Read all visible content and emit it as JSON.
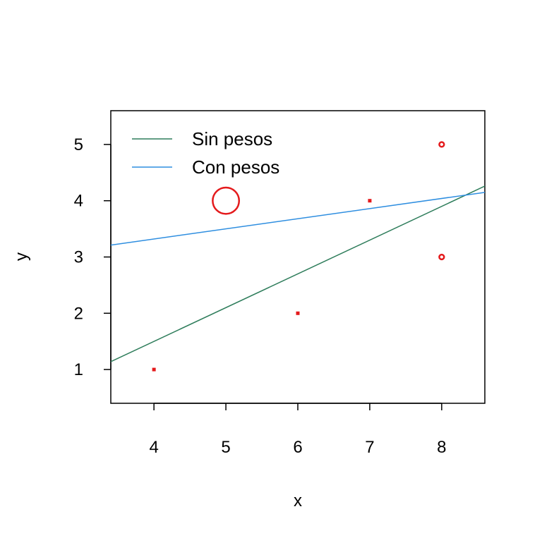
{
  "chart_data": {
    "type": "scatter",
    "title": "",
    "xlabel": "x",
    "ylabel": "y",
    "xlim": [
      3.4,
      8.6
    ],
    "ylim": [
      0.4,
      5.6
    ],
    "x_ticks": [
      4,
      5,
      6,
      7,
      8
    ],
    "y_ticks": [
      1,
      2,
      3,
      4,
      5
    ],
    "grid": false,
    "legend_position": "top-left",
    "points": [
      {
        "x": 4,
        "y": 1,
        "weight": 1
      },
      {
        "x": 5,
        "y": 4,
        "weight": 11
      },
      {
        "x": 6,
        "y": 2,
        "weight": 1
      },
      {
        "x": 7,
        "y": 4,
        "weight": 1
      },
      {
        "x": 8,
        "y": 3,
        "weight": 2
      },
      {
        "x": 8,
        "y": 5,
        "weight": 2
      }
    ],
    "point_color": "#e41a1c",
    "series": [
      {
        "name": "Sin pesos",
        "type": "line",
        "intercept": -0.9,
        "slope": 0.6,
        "color": "#2e7d5b"
      },
      {
        "name": "Con pesos",
        "type": "line",
        "intercept": 2.6,
        "slope": 0.18,
        "color": "#2e8ee0"
      }
    ]
  }
}
